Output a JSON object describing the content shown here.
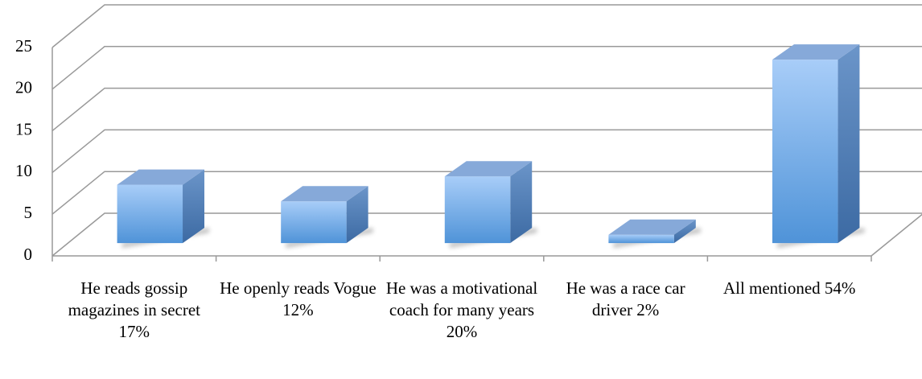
{
  "chart_data": {
    "type": "bar3d",
    "categories": [
      "He reads gossip magazines in secret 17%",
      "He openly reads Vogue 12%",
      "He was a motivational coach for many years 20%",
      "He was a race car driver 2%",
      "All mentioned 54%"
    ],
    "values": [
      7,
      5,
      8,
      1,
      22
    ],
    "color": "#5b9bd5",
    "ylim": [
      0,
      25
    ],
    "yticks": [
      0,
      5,
      10,
      15,
      20,
      25
    ],
    "grid": true
  }
}
